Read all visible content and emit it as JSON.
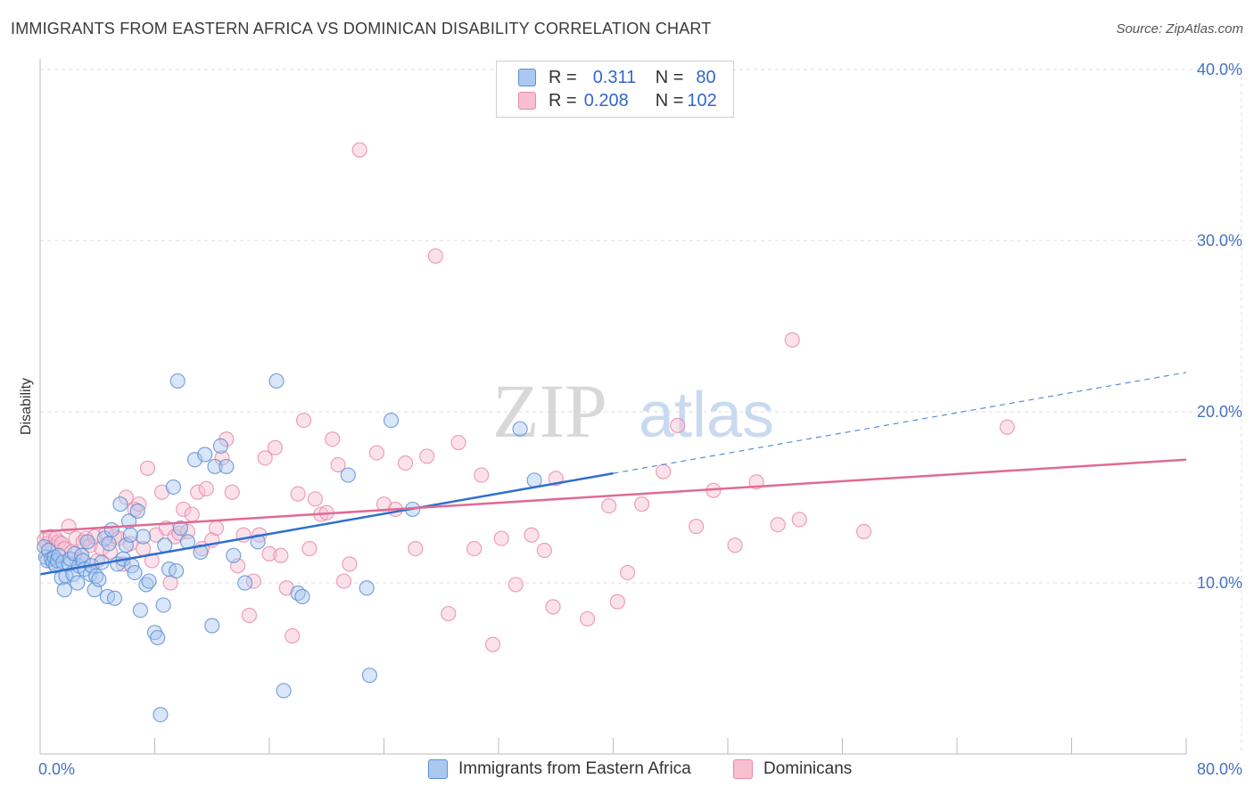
{
  "title": "IMMIGRANTS FROM EASTERN AFRICA VS DOMINICAN DISABILITY CORRELATION CHART",
  "source": "Source: ZipAtlas.com",
  "watermark": {
    "zip": "ZIP",
    "atlas": "atlas"
  },
  "legend": {
    "rows": [
      {
        "r_label": "R =",
        "r_value": "0.311",
        "n_label": "N =",
        "n_value": "80"
      },
      {
        "r_label": "R =",
        "r_value": "0.208",
        "n_label": "N =",
        "n_value": "102"
      }
    ]
  },
  "bottom_legend": {
    "series1": "Immigrants from Eastern Africa",
    "series2": "Dominicans"
  },
  "colors": {
    "blue_fill": "#aac8f0",
    "blue_stroke": "#5b8fd6",
    "blue_line": "#2f6fcf",
    "pink_fill": "#f7bfd0",
    "pink_stroke": "#e88aa8",
    "pink_line": "#e06a93",
    "grid": "#dddddd",
    "tick_label": "#4472c4"
  },
  "chart_data": {
    "type": "scatter",
    "title": "IMMIGRANTS FROM EASTERN AFRICA VS DOMINICAN DISABILITY CORRELATION CHART",
    "xlabel": "",
    "ylabel": "Disability",
    "xlim": [
      0,
      80
    ],
    "ylim": [
      0,
      40
    ],
    "x_tick_labels": [
      "0.0%",
      "80.0%"
    ],
    "y_ticks": [
      10,
      20,
      30,
      40
    ],
    "y_tick_labels": [
      "10.0%",
      "20.0%",
      "30.0%",
      "40.0%"
    ],
    "grid": true,
    "legend_position": "top-center",
    "series": [
      {
        "name": "Immigrants from Eastern Africa",
        "r": 0.311,
        "n": 80,
        "trend": {
          "x0": 0,
          "y0": 10.5,
          "x1": 40,
          "y1": 16.4,
          "dash_to_x": 80,
          "dash_to_y": 22.3
        },
        "points": [
          [
            0.3,
            12.1
          ],
          [
            0.4,
            11.5
          ],
          [
            0.5,
            11.3
          ],
          [
            0.6,
            11.9
          ],
          [
            0.8,
            11.4
          ],
          [
            0.9,
            11.2
          ],
          [
            1.0,
            11.5
          ],
          [
            1.1,
            11.0
          ],
          [
            1.2,
            11.3
          ],
          [
            1.3,
            11.6
          ],
          [
            1.5,
            10.3
          ],
          [
            1.6,
            11.2
          ],
          [
            1.7,
            9.6
          ],
          [
            1.8,
            10.4
          ],
          [
            2.0,
            11.1
          ],
          [
            2.1,
            11.4
          ],
          [
            2.3,
            10.5
          ],
          [
            2.4,
            11.7
          ],
          [
            2.6,
            10.0
          ],
          [
            2.7,
            11.0
          ],
          [
            2.9,
            11.6
          ],
          [
            3.0,
            11.3
          ],
          [
            3.1,
            10.8
          ],
          [
            3.3,
            12.4
          ],
          [
            3.5,
            10.5
          ],
          [
            3.6,
            11.0
          ],
          [
            3.8,
            9.6
          ],
          [
            3.9,
            10.4
          ],
          [
            4.1,
            10.2
          ],
          [
            4.3,
            11.2
          ],
          [
            4.5,
            12.6
          ],
          [
            4.7,
            9.2
          ],
          [
            4.8,
            12.3
          ],
          [
            5.0,
            13.1
          ],
          [
            5.2,
            9.1
          ],
          [
            5.4,
            11.1
          ],
          [
            5.6,
            14.6
          ],
          [
            5.8,
            11.4
          ],
          [
            6.0,
            12.2
          ],
          [
            6.2,
            13.6
          ],
          [
            6.4,
            11.0
          ],
          [
            6.6,
            10.6
          ],
          [
            6.8,
            14.2
          ],
          [
            7.0,
            8.4
          ],
          [
            7.2,
            12.7
          ],
          [
            7.4,
            9.9
          ],
          [
            7.6,
            10.1
          ],
          [
            8.0,
            7.1
          ],
          [
            8.2,
            6.8
          ],
          [
            8.4,
            2.3
          ],
          [
            8.7,
            12.2
          ],
          [
            9.0,
            10.8
          ],
          [
            9.3,
            15.6
          ],
          [
            9.6,
            21.8
          ],
          [
            9.8,
            13.2
          ],
          [
            10.3,
            12.4
          ],
          [
            10.8,
            17.2
          ],
          [
            11.2,
            11.8
          ],
          [
            11.5,
            17.5
          ],
          [
            12.2,
            16.8
          ],
          [
            12.6,
            18.0
          ],
          [
            13.0,
            16.8
          ],
          [
            13.5,
            11.6
          ],
          [
            14.3,
            10.0
          ],
          [
            15.2,
            12.4
          ],
          [
            16.5,
            21.8
          ],
          [
            17.0,
            3.7
          ],
          [
            18.0,
            9.4
          ],
          [
            18.3,
            9.2
          ],
          [
            21.5,
            16.3
          ],
          [
            22.8,
            9.7
          ],
          [
            23.0,
            4.6
          ],
          [
            24.5,
            19.5
          ],
          [
            26.0,
            14.3
          ],
          [
            33.5,
            19.0
          ],
          [
            34.5,
            16.0
          ],
          [
            8.6,
            8.7
          ],
          [
            9.5,
            10.7
          ],
          [
            12.0,
            7.5
          ],
          [
            6.3,
            12.8
          ]
        ]
      },
      {
        "name": "Dominicans",
        "r": 0.208,
        "n": 102,
        "trend": {
          "x0": 0,
          "y0": 13.0,
          "x1": 80,
          "y1": 17.2
        },
        "points": [
          [
            0.3,
            12.5
          ],
          [
            0.5,
            12.3
          ],
          [
            0.7,
            12.7
          ],
          [
            0.9,
            12.1
          ],
          [
            1.1,
            12.6
          ],
          [
            1.3,
            12.4
          ],
          [
            1.5,
            12.3
          ],
          [
            1.7,
            12.0
          ],
          [
            2.0,
            13.3
          ],
          [
            2.2,
            11.8
          ],
          [
            2.5,
            12.6
          ],
          [
            2.8,
            11.4
          ],
          [
            3.0,
            12.4
          ],
          [
            3.2,
            12.6
          ],
          [
            3.5,
            12.2
          ],
          [
            3.8,
            12.7
          ],
          [
            4.0,
            11.3
          ],
          [
            4.3,
            12.0
          ],
          [
            4.6,
            12.9
          ],
          [
            4.9,
            11.8
          ],
          [
            5.2,
            12.7
          ],
          [
            5.5,
            12.6
          ],
          [
            5.8,
            11.1
          ],
          [
            6.0,
            15.0
          ],
          [
            6.3,
            12.3
          ],
          [
            6.6,
            14.3
          ],
          [
            6.9,
            14.6
          ],
          [
            7.2,
            12.0
          ],
          [
            7.5,
            16.7
          ],
          [
            7.8,
            11.3
          ],
          [
            8.1,
            12.8
          ],
          [
            8.5,
            15.3
          ],
          [
            8.8,
            13.2
          ],
          [
            9.1,
            10.0
          ],
          [
            9.4,
            12.7
          ],
          [
            9.7,
            12.9
          ],
          [
            10.0,
            14.3
          ],
          [
            10.3,
            13.0
          ],
          [
            10.6,
            14.0
          ],
          [
            11.0,
            15.3
          ],
          [
            11.3,
            12.0
          ],
          [
            11.6,
            15.5
          ],
          [
            12.0,
            12.5
          ],
          [
            12.3,
            13.2
          ],
          [
            12.7,
            17.3
          ],
          [
            13.0,
            18.4
          ],
          [
            13.4,
            15.3
          ],
          [
            13.8,
            11.0
          ],
          [
            14.2,
            12.8
          ],
          [
            14.6,
            8.1
          ],
          [
            14.9,
            10.1
          ],
          [
            15.3,
            12.8
          ],
          [
            15.7,
            17.3
          ],
          [
            16.0,
            11.7
          ],
          [
            16.4,
            17.9
          ],
          [
            16.8,
            11.6
          ],
          [
            17.2,
            9.7
          ],
          [
            17.6,
            6.9
          ],
          [
            18.0,
            15.2
          ],
          [
            18.4,
            19.5
          ],
          [
            18.8,
            12.0
          ],
          [
            19.2,
            14.9
          ],
          [
            19.6,
            14.0
          ],
          [
            20.0,
            14.1
          ],
          [
            20.4,
            18.4
          ],
          [
            20.8,
            16.9
          ],
          [
            21.2,
            10.1
          ],
          [
            21.6,
            11.1
          ],
          [
            22.3,
            35.3
          ],
          [
            23.5,
            17.6
          ],
          [
            24.0,
            14.6
          ],
          [
            24.8,
            14.3
          ],
          [
            25.5,
            17.0
          ],
          [
            26.2,
            12.0
          ],
          [
            27.0,
            17.4
          ],
          [
            27.6,
            29.1
          ],
          [
            28.5,
            8.2
          ],
          [
            29.2,
            18.2
          ],
          [
            30.3,
            12.0
          ],
          [
            30.8,
            16.3
          ],
          [
            31.6,
            6.4
          ],
          [
            32.2,
            12.6
          ],
          [
            33.2,
            9.9
          ],
          [
            34.3,
            12.8
          ],
          [
            35.2,
            11.9
          ],
          [
            36.0,
            16.1
          ],
          [
            35.8,
            8.6
          ],
          [
            38.2,
            7.9
          ],
          [
            39.7,
            14.5
          ],
          [
            40.3,
            8.9
          ],
          [
            41.0,
            10.6
          ],
          [
            42.0,
            14.6
          ],
          [
            43.5,
            16.5
          ],
          [
            44.5,
            19.2
          ],
          [
            45.8,
            13.3
          ],
          [
            47.0,
            15.4
          ],
          [
            48.5,
            12.2
          ],
          [
            50.0,
            15.9
          ],
          [
            51.5,
            13.4
          ],
          [
            52.5,
            24.2
          ],
          [
            53.0,
            13.7
          ],
          [
            57.5,
            13.0
          ],
          [
            67.5,
            19.1
          ]
        ]
      }
    ]
  }
}
